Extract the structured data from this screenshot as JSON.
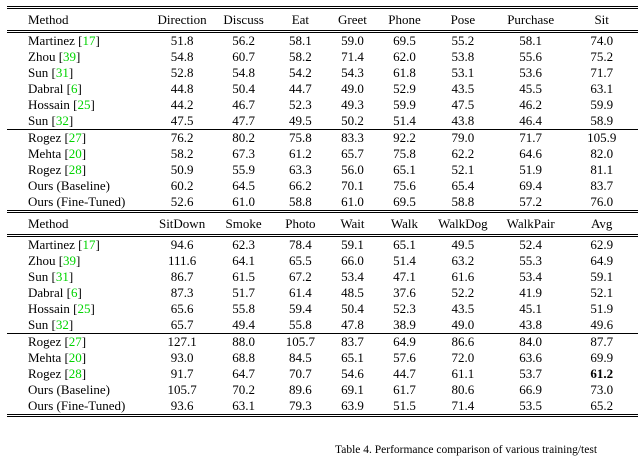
{
  "caption": {
    "text": "Table 4. Performance comparison of various training/test"
  },
  "colors": {
    "citation_green": "#00d400",
    "rule_black": "#000000"
  },
  "tables": [
    {
      "id": "actions-part-1",
      "columns": [
        "Method",
        "Direction",
        "Discuss",
        "Eat",
        "Greet",
        "Phone",
        "Pose",
        "Purchase",
        "Sit"
      ],
      "groups": [
        {
          "rows": [
            {
              "method": "Martinez",
              "ref": "17",
              "values": [
                "51.8",
                "56.2",
                "58.1",
                "59.0",
                "69.5",
                "55.2",
                "58.1",
                "74.0"
              ]
            },
            {
              "method": "Zhou",
              "ref": "39",
              "values": [
                "54.8",
                "60.7",
                "58.2",
                "71.4",
                "62.0",
                "53.8",
                "55.6",
                "75.2"
              ]
            },
            {
              "method": "Sun",
              "ref": "31",
              "values": [
                "52.8",
                "54.8",
                "54.2",
                "54.3",
                "61.8",
                "53.1",
                "53.6",
                "71.7"
              ]
            },
            {
              "method": "Dabral",
              "ref": "6",
              "values": [
                "44.8",
                "50.4",
                "44.7",
                "49.0",
                "52.9",
                "43.5",
                "45.5",
                "63.1"
              ]
            },
            {
              "method": "Hossain",
              "ref": "25",
              "values": [
                "44.2",
                "46.7",
                "52.3",
                "49.3",
                "59.9",
                "47.5",
                "46.2",
                "59.9"
              ]
            },
            {
              "method": "Sun",
              "ref": "32",
              "values": [
                "47.5",
                "47.7",
                "49.5",
                "50.2",
                "51.4",
                "43.8",
                "46.4",
                "58.9"
              ]
            }
          ]
        },
        {
          "rows": [
            {
              "method": "Rogez",
              "ref": "27",
              "values": [
                "76.2",
                "80.2",
                "75.8",
                "83.3",
                "92.2",
                "79.0",
                "71.7",
                "105.9"
              ]
            },
            {
              "method": "Mehta",
              "ref": "20",
              "values": [
                "58.2",
                "67.3",
                "61.2",
                "65.7",
                "75.8",
                "62.2",
                "64.6",
                "82.0"
              ]
            },
            {
              "method": "Rogez",
              "ref": "28",
              "values": [
                "50.9",
                "55.9",
                "63.3",
                "56.0",
                "65.1",
                "52.1",
                "51.9",
                "81.1"
              ]
            },
            {
              "method": "Ours (Baseline)",
              "ref": null,
              "values": [
                "60.2",
                "64.5",
                "66.2",
                "70.1",
                "75.6",
                "65.4",
                "69.4",
                "83.7"
              ]
            },
            {
              "method": "Ours (Fine-Tuned)",
              "ref": null,
              "values": [
                "52.6",
                "61.0",
                "58.8",
                "61.0",
                "69.5",
                "58.8",
                "57.2",
                "76.0"
              ]
            }
          ]
        }
      ]
    },
    {
      "id": "actions-part-2",
      "columns": [
        "Method",
        "SitDown",
        "Smoke",
        "Photo",
        "Wait",
        "Walk",
        "WalkDog",
        "WalkPair",
        "Avg"
      ],
      "groups": [
        {
          "rows": [
            {
              "method": "Martinez",
              "ref": "17",
              "values": [
                "94.6",
                "62.3",
                "78.4",
                "59.1",
                "65.1",
                "49.5",
                "52.4",
                "62.9"
              ]
            },
            {
              "method": "Zhou",
              "ref": "39",
              "values": [
                "111.6",
                "64.1",
                "65.5",
                "66.0",
                "51.4",
                "63.2",
                "55.3",
                "64.9"
              ]
            },
            {
              "method": "Sun",
              "ref": "31",
              "values": [
                "86.7",
                "61.5",
                "67.2",
                "53.4",
                "47.1",
                "61.6",
                "53.4",
                "59.1"
              ]
            },
            {
              "method": "Dabral",
              "ref": "6",
              "values": [
                "87.3",
                "51.7",
                "61.4",
                "48.5",
                "37.6",
                "52.2",
                "41.9",
                "52.1"
              ]
            },
            {
              "method": "Hossain",
              "ref": "25",
              "values": [
                "65.6",
                "55.8",
                "59.4",
                "50.4",
                "52.3",
                "43.5",
                "45.1",
                "51.9"
              ]
            },
            {
              "method": "Sun",
              "ref": "32",
              "values": [
                "65.7",
                "49.4",
                "55.8",
                "47.8",
                "38.9",
                "49.0",
                "43.8",
                "49.6"
              ]
            }
          ]
        },
        {
          "rows": [
            {
              "method": "Rogez",
              "ref": "27",
              "values": [
                "127.1",
                "88.0",
                "105.7",
                "83.7",
                "64.9",
                "86.6",
                "84.0",
                "87.7"
              ]
            },
            {
              "method": "Mehta",
              "ref": "20",
              "values": [
                "93.0",
                "68.8",
                "84.5",
                "65.1",
                "57.6",
                "72.0",
                "63.6",
                "69.9"
              ]
            },
            {
              "method": "Rogez",
              "ref": "28",
              "values": [
                "91.7",
                "64.7",
                "70.7",
                "54.6",
                "44.7",
                "61.1",
                "53.7",
                "61.2"
              ],
              "bold": [
                7
              ]
            },
            {
              "method": "Ours (Baseline)",
              "ref": null,
              "values": [
                "105.7",
                "70.2",
                "89.6",
                "69.1",
                "61.7",
                "80.6",
                "66.9",
                "73.0"
              ]
            },
            {
              "method": "Ours (Fine-Tuned)",
              "ref": null,
              "values": [
                "93.6",
                "63.1",
                "79.3",
                "63.9",
                "51.5",
                "71.4",
                "53.5",
                "65.2"
              ]
            }
          ]
        }
      ]
    }
  ]
}
